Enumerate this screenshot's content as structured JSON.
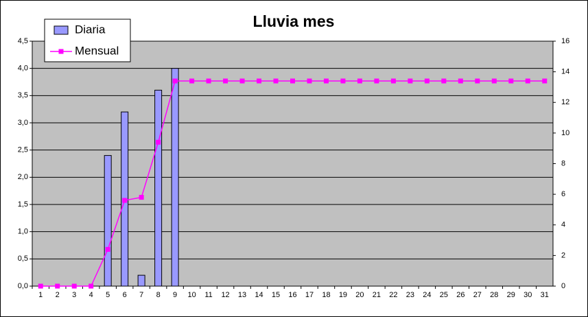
{
  "chart_data": {
    "type": "bar",
    "title": "Lluvia mes",
    "categories": [
      "1",
      "2",
      "3",
      "4",
      "5",
      "6",
      "7",
      "8",
      "9",
      "10",
      "11",
      "12",
      "13",
      "14",
      "15",
      "16",
      "17",
      "18",
      "19",
      "20",
      "21",
      "22",
      "23",
      "24",
      "25",
      "26",
      "27",
      "28",
      "29",
      "30",
      "31"
    ],
    "series": [
      {
        "name": "Diaria",
        "type": "bar",
        "color": "#9999ff",
        "axis": "y",
        "values": [
          0,
          0,
          0,
          0,
          2.4,
          3.2,
          0.2,
          3.6,
          4.0,
          0,
          0,
          0,
          0,
          0,
          0,
          0,
          0,
          0,
          0,
          0,
          0,
          0,
          0,
          0,
          0,
          0,
          0,
          0,
          0,
          0,
          0
        ]
      },
      {
        "name": "Mensual",
        "type": "line",
        "color": "#ff00ff",
        "axis": "y2",
        "values": [
          0,
          0,
          0,
          0,
          2.4,
          5.6,
          5.8,
          9.4,
          13.4,
          13.4,
          13.4,
          13.4,
          13.4,
          13.4,
          13.4,
          13.4,
          13.4,
          13.4,
          13.4,
          13.4,
          13.4,
          13.4,
          13.4,
          13.4,
          13.4,
          13.4,
          13.4,
          13.4,
          13.4,
          13.4,
          13.4
        ]
      }
    ],
    "ylim": [
      0,
      4.5
    ],
    "yticks": [
      {
        "value": 0,
        "label": "0,0"
      },
      {
        "value": 0.5,
        "label": "0,5"
      },
      {
        "value": 1,
        "label": "1,0"
      },
      {
        "value": 1.5,
        "label": "1,5"
      },
      {
        "value": 2,
        "label": "2,0"
      },
      {
        "value": 2.5,
        "label": "2,5"
      },
      {
        "value": 3,
        "label": "3,0"
      },
      {
        "value": 3.5,
        "label": "3,5"
      },
      {
        "value": 4,
        "label": "4,0"
      },
      {
        "value": 4.5,
        "label": "4,5"
      }
    ],
    "y2lim": [
      0,
      16
    ],
    "y2ticks": [
      0,
      2,
      4,
      6,
      8,
      10,
      12,
      14,
      16
    ],
    "grid": true,
    "plot_background": "#c0c0c0",
    "legend": "top-left"
  }
}
